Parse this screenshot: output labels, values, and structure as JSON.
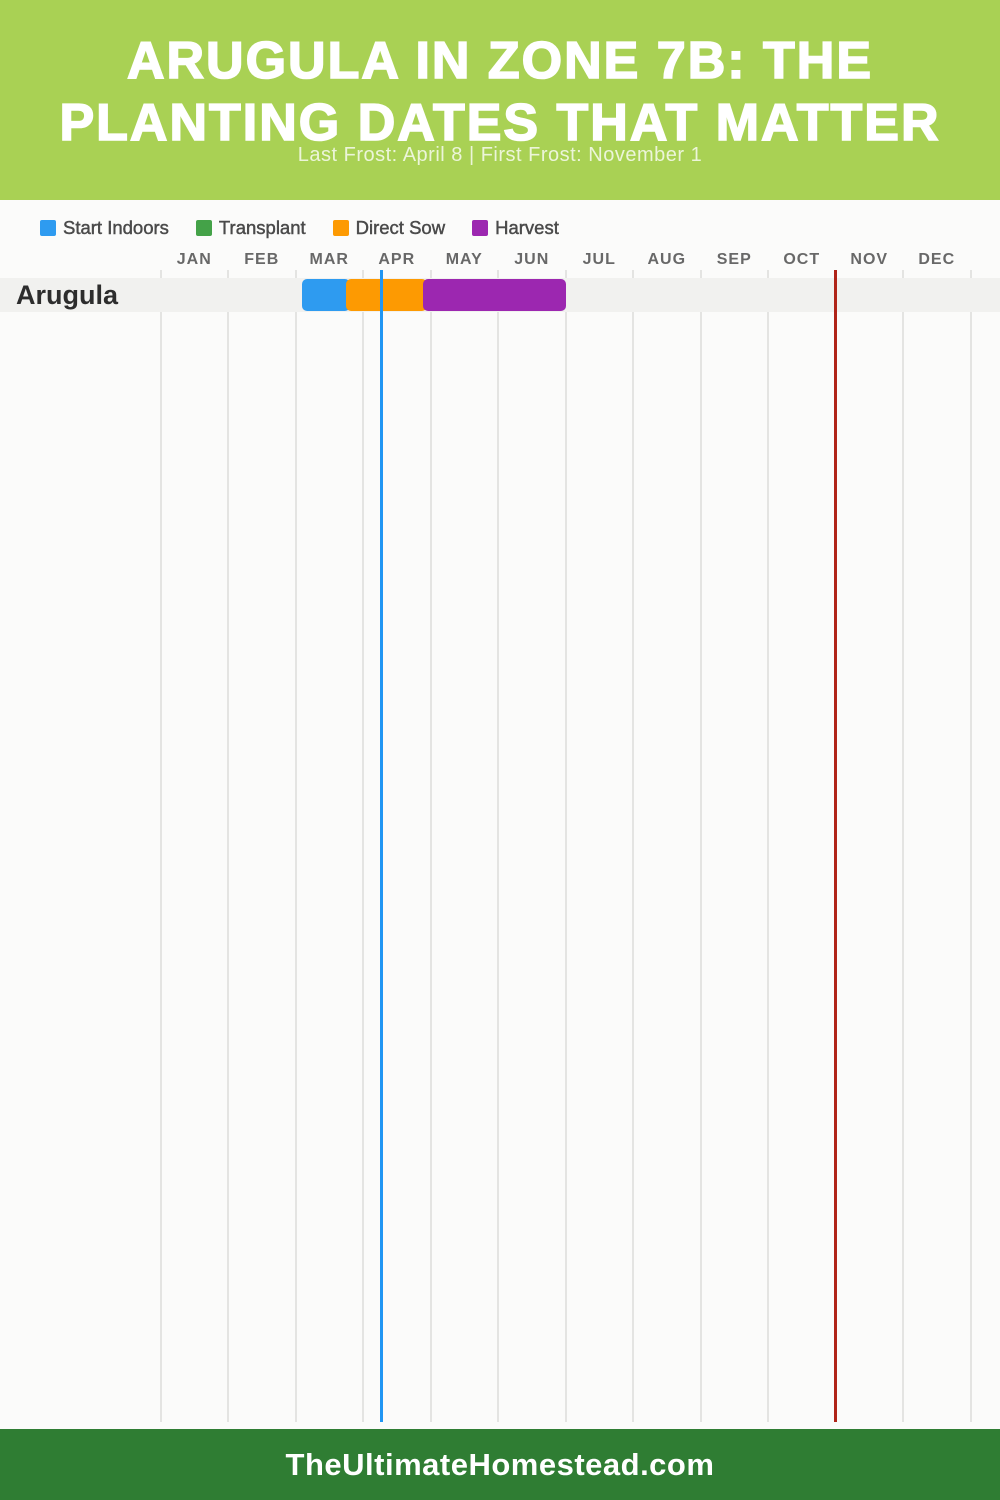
{
  "header": {
    "title_line1": "ARUGULA IN ZONE 7B: THE",
    "title_line2": "PLANTING DATES THAT MATTER",
    "subtitle": "Last Frost: April 8 | First Frost: November 1",
    "bg_color": "#a9d154"
  },
  "legend": {
    "items": [
      {
        "label": "Start Indoors",
        "color": "#2e9bf0"
      },
      {
        "label": "Transplant",
        "color": "#44a248"
      },
      {
        "label": "Direct Sow",
        "color": "#fd9a02"
      },
      {
        "label": "Harvest",
        "color": "#9c27b0"
      }
    ]
  },
  "chart_data": {
    "type": "gantt-timeline",
    "title": "Arugula in Zone 7b: The Planting Dates That Matter",
    "months": [
      "JAN",
      "FEB",
      "MAR",
      "APR",
      "MAY",
      "JUN",
      "JUL",
      "AUG",
      "SEP",
      "OCT",
      "NOV",
      "DEC"
    ],
    "axis": {
      "range_months": [
        0,
        12
      ],
      "gridlines": "monthly"
    },
    "rows": [
      {
        "label": "Arugula",
        "bars": [
          {
            "category": "Start Indoors",
            "color": "#2e9bf0",
            "start_month": 2.1,
            "end_month": 2.8,
            "approx_dates": "Mar 4 - Mar 25"
          },
          {
            "category": "Direct Sow",
            "color": "#fd9a02",
            "start_month": 2.8,
            "end_month": 3.95,
            "approx_dates": "Mar 25 - Apr 29"
          },
          {
            "category": "Harvest",
            "color": "#9c27b0",
            "start_month": 3.95,
            "end_month": 6.01,
            "approx_dates": "Apr 29 - Jul 1"
          }
        ]
      }
    ],
    "frost_lines": [
      {
        "label": "Last Frost",
        "date": "April 8",
        "color": "#2196f3",
        "month_position": 3.27
      },
      {
        "label": "First Frost",
        "date": "November 1",
        "color": "#b02418",
        "month_position": 10.0
      }
    ]
  },
  "footer": {
    "text": "TheUltimateHomestead.com",
    "bg_color": "#2f7d33"
  }
}
